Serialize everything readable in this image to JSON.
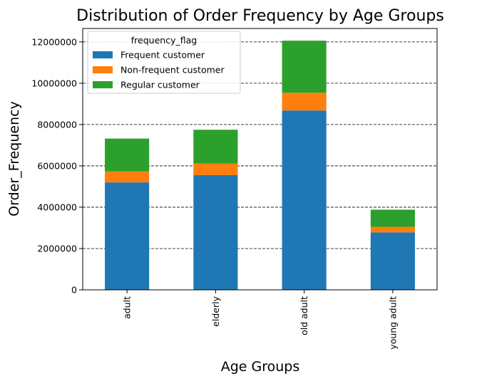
{
  "chart_data": {
    "type": "bar",
    "stacked": true,
    "title": "Distribution of Order Frequency by Age Groups",
    "xlabel": "Age Groups",
    "ylabel": "Order_Frequency",
    "categories": [
      "adult",
      "elderly",
      "old adult",
      "young adult"
    ],
    "series": [
      {
        "name": "Frequent customer",
        "color": "#1f77b4",
        "values": [
          5200000,
          5550000,
          8680000,
          2780000
        ]
      },
      {
        "name": "Non-frequent customer",
        "color": "#ff7f0e",
        "values": [
          530000,
          560000,
          860000,
          270000
        ]
      },
      {
        "name": "Regular customer",
        "color": "#2ca02c",
        "values": [
          1590000,
          1640000,
          2520000,
          830000
        ]
      }
    ],
    "yticks": [
      0,
      2000000,
      4000000,
      6000000,
      8000000,
      10000000,
      12000000
    ],
    "ytick_labels": [
      "0",
      "2000000",
      "4000000",
      "6000000",
      "8000000",
      "10000000",
      "12000000"
    ],
    "ylim": [
      0,
      12650000
    ],
    "grid": "y, dashed",
    "legend": {
      "title": "frequency_flag",
      "placement": "top-left"
    }
  }
}
